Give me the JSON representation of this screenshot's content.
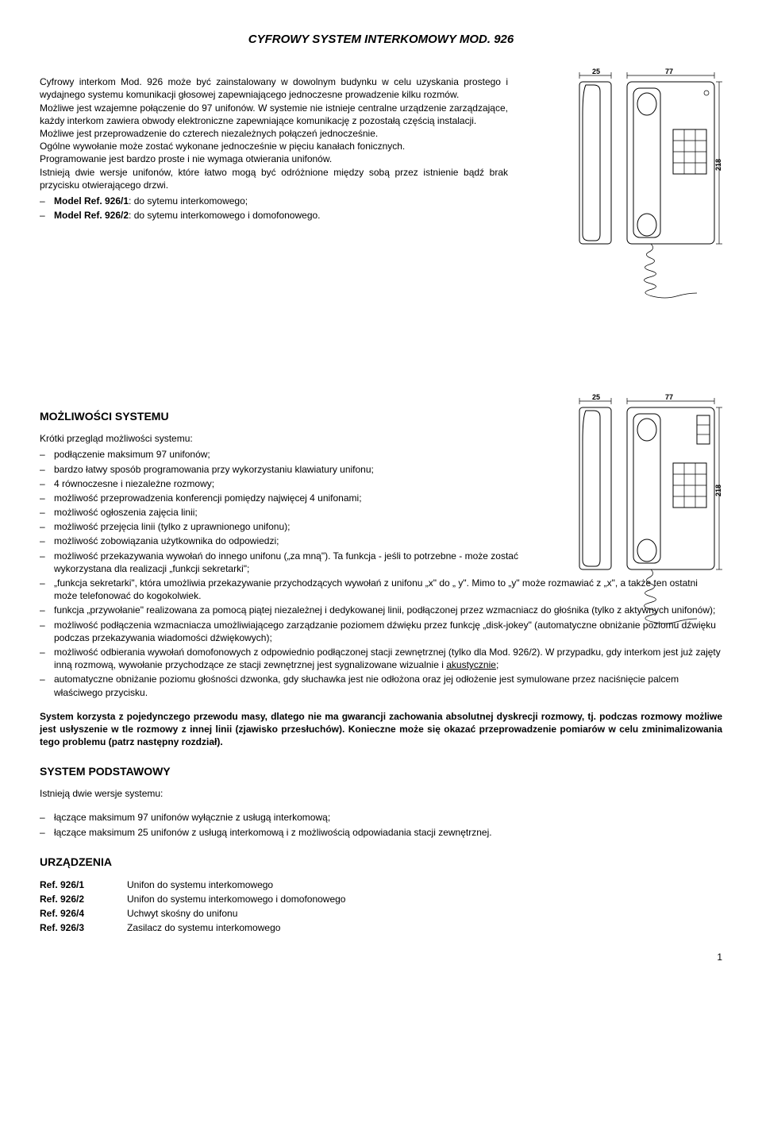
{
  "title": "CYFROWY SYSTEM INTERKOMOWY MOD. 926",
  "intro": {
    "p1": "Cyfrowy interkom Mod. 926 może być zainstalowany w dowolnym budynku w celu uzyskania prostego i wydajnego systemu komunikacji głosowej zapewniającego jednoczesne prowadzenie kilku rozmów.",
    "p2": "Możliwe jest wzajemne połączenie do 97 unifonów. W systemie nie istnieje centralne urządzenie zarządzające, każdy interkom zawiera obwody elektroniczne zapewniające komunikację z pozostałą częścią instalacji.",
    "p3": "Możliwe jest przeprowadzenie do czterech niezależnych połączeń jednocześnie.",
    "p4": "Ogólne wywołanie może zostać wykonane jednocześnie w pięciu kanałach fonicznych.",
    "p5": "Programowanie jest bardzo proste i nie wymaga otwierania unifonów.",
    "p6": "Istnieją dwie wersje unifonów, które łatwo mogą być odróżnione między sobą przez istnienie bądź brak przycisku otwierającego drzwi.",
    "model1_ref": "Model Ref. 926/1",
    "model1_desc": ": do sytemu interkomowego;",
    "model2_ref": "Model Ref. 926/2",
    "model2_desc": ": do sytemu interkomowego i domofonowego."
  },
  "diagram": {
    "dim_top_left": "25",
    "dim_top_right": "77",
    "dim_side": "218"
  },
  "features": {
    "heading": "MOŻLIWOŚCI SYSTEMU",
    "lead": "Krótki przegląd możliwości systemu:",
    "items": [
      "podłączenie maksimum 97 unifonów;",
      "bardzo łatwy sposób programowania przy wykorzystaniu klawiatury unifonu;",
      "4 równoczesne i niezależne rozmowy;",
      "możliwość przeprowadzenia konferencji pomiędzy najwięcej 4 unifonami;",
      "możliwość ogłoszenia zajęcia linii;",
      "możliwość przejęcia linii (tylko z uprawnionego unifonu);",
      "możliwość zobowiązania użytkownika do odpowiedzi;",
      "możliwość przekazywania wywołań do innego unifonu („za mną\"). Ta funkcja - jeśli to potrzebne - może zostać wykorzystana dla realizacji „funkcji sekretarki\";",
      "„funkcja sekretarki\", która umożliwia przekazywanie przychodzących wywołań z unifonu „x\" do „ y\". Mimo to „y\" może rozmawiać z „x\", a także ten ostatni może telefonować do kogokolwiek.",
      "funkcja „przywołanie\" realizowana za pomocą piątej niezależnej i dedykowanej linii, podłączonej przez wzmacniacz do głośnika (tylko z aktywnych unifonów);",
      "możliwość podłączenia wzmacniacza umożliwiającego zarządzanie poziomem dźwięku przez funkcję „disk-jokey\" (automatyczne obniżanie poziomu dźwięku podczas przekazywania wiadomości dźwiękowych);",
      "możliwość odbierania wywołań domofonowych z odpowiednio podłączonej stacji zewnętrznej (tylko dla Mod. 926/2). W przypadku, gdy interkom jest już zajęty inną rozmową, wywołanie przychodzące ze stacji zewnętrznej jest sygnalizowane wizualnie i akustycznie;",
      "automatyczne obniżanie poziomu głośności dzwonka, gdy słuchawka jest nie odłożona oraz jej odłożenie jest symulowane przez naciśnięcie palcem właściwego przycisku."
    ],
    "items_underline": [
      "akustycznie"
    ]
  },
  "note": "System korzysta z pojedynczego przewodu masy, dlatego nie ma gwarancji zachowania absolutnej dyskrecji rozmowy, tj. podczas rozmowy możliwe jest usłyszenie w tle rozmowy z innej linii (zjawisko przesłuchów). Konieczne może się okazać przeprowadzenie pomiarów w celu zminimalizowania tego problemu (patrz następny rozdział).",
  "basic": {
    "heading": "SYSTEM PODSTAWOWY",
    "lead": "Istnieją dwie wersje systemu:",
    "items": [
      "łączące maksimum 97 unifonów wyłącznie z usługą interkomową;",
      "łączące maksimum 25 unifonów z usługą interkomową  i z możliwością odpowiadania stacji zewnętrznej."
    ]
  },
  "devices": {
    "heading": "URZĄDZENIA",
    "rows": [
      {
        "ref": "Ref. 926/1",
        "desc": "Unifon do systemu interkomowego"
      },
      {
        "ref": "Ref. 926/2",
        "desc": "Unifon  do systemu interkomowego i domofonowego"
      },
      {
        "ref": "Ref. 926/4",
        "desc": "Uchwyt skośny do unifonu"
      },
      {
        "ref": "Ref. 926/3",
        "desc": "Zasilacz do systemu interkomowego"
      }
    ]
  },
  "page": "1"
}
